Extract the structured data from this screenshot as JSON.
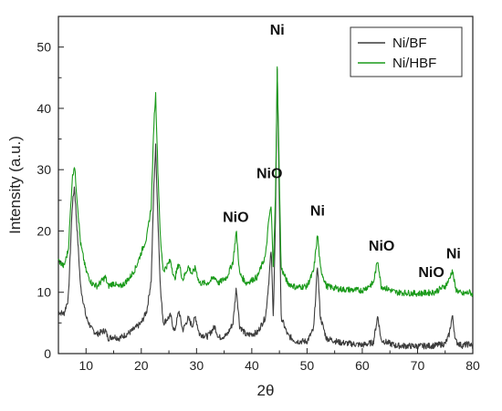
{
  "chart_data": {
    "type": "line",
    "title": "",
    "xlabel": "2θ",
    "ylabel": "Intensity (a.u.)",
    "xlim": [
      5,
      80
    ],
    "ylim": [
      0,
      55
    ],
    "x_ticks": [
      10,
      20,
      30,
      40,
      50,
      60,
      70,
      80
    ],
    "y_ticks": [
      0,
      10,
      20,
      30,
      40,
      50
    ],
    "legend_position": "top-right",
    "grid": false,
    "series": [
      {
        "name": "Ni/BF",
        "color": "#3c3c3c",
        "baseline": 1.2,
        "points": [
          [
            5,
            6.8
          ],
          [
            6,
            6.5
          ],
          [
            6.8,
            9.0
          ],
          [
            7.5,
            24.0
          ],
          [
            7.9,
            27.3
          ],
          [
            8.4,
            20.0
          ],
          [
            9,
            11.0
          ],
          [
            10,
            6.0
          ],
          [
            11,
            4.0
          ],
          [
            12,
            3.2
          ],
          [
            13.5,
            3.8
          ],
          [
            14,
            2.5
          ],
          [
            15,
            2.8
          ],
          [
            16,
            2.5
          ],
          [
            17,
            3.0
          ],
          [
            18,
            3.5
          ],
          [
            19,
            4.2
          ],
          [
            20,
            5.0
          ],
          [
            21,
            7.0
          ],
          [
            21.8,
            12.0
          ],
          [
            22.3,
            28.0
          ],
          [
            22.6,
            33.8
          ],
          [
            23.0,
            22.0
          ],
          [
            23.5,
            10.0
          ],
          [
            24,
            5.0
          ],
          [
            25.3,
            6.2
          ],
          [
            26,
            3.5
          ],
          [
            26.8,
            7.0
          ],
          [
            27.5,
            3.8
          ],
          [
            28.5,
            5.8
          ],
          [
            29.2,
            4.5
          ],
          [
            29.8,
            6.0
          ],
          [
            30.5,
            3.2
          ],
          [
            32,
            2.8
          ],
          [
            33.3,
            4.4
          ],
          [
            34,
            2.6
          ],
          [
            35.5,
            3.0
          ],
          [
            36.6,
            5.0
          ],
          [
            37.2,
            10.8
          ],
          [
            37.8,
            4.5
          ],
          [
            39,
            3.0
          ],
          [
            41,
            3.4
          ],
          [
            42.5,
            6.0
          ],
          [
            43.1,
            12.0
          ],
          [
            43.5,
            17.0
          ],
          [
            43.9,
            6.0
          ],
          [
            44.3,
            22.0
          ],
          [
            44.6,
            46.8
          ],
          [
            44.9,
            30.0
          ],
          [
            45.3,
            6.0
          ],
          [
            46.5,
            3.0
          ],
          [
            48,
            2.0
          ],
          [
            50,
            2.0
          ],
          [
            51.2,
            4.0
          ],
          [
            51.9,
            14.5
          ],
          [
            52.4,
            6.0
          ],
          [
            53.5,
            2.5
          ],
          [
            56,
            1.8
          ],
          [
            60,
            1.4
          ],
          [
            62,
            1.8
          ],
          [
            62.8,
            6.2
          ],
          [
            63.4,
            2.2
          ],
          [
            66,
            1.3
          ],
          [
            70,
            1.2
          ],
          [
            73,
            1.3
          ],
          [
            75,
            1.6
          ],
          [
            75.7,
            3.0
          ],
          [
            76.3,
            6.2
          ],
          [
            76.9,
            2.0
          ],
          [
            78,
            1.3
          ],
          [
            79.5,
            1.6
          ],
          [
            80,
            1.0
          ]
        ]
      },
      {
        "name": "Ni/HBF",
        "color": "#1a9a1a",
        "baseline": 10.0,
        "points": [
          [
            5,
            15.2
          ],
          [
            6,
            14.2
          ],
          [
            6.8,
            17.0
          ],
          [
            7.5,
            28.5
          ],
          [
            7.9,
            30.8
          ],
          [
            8.4,
            25.0
          ],
          [
            9,
            18.0
          ],
          [
            10,
            13.5
          ],
          [
            11,
            11.5
          ],
          [
            12,
            11.0
          ],
          [
            13.5,
            12.5
          ],
          [
            14,
            11.0
          ],
          [
            15,
            11.5
          ],
          [
            16,
            10.8
          ],
          [
            17,
            11.5
          ],
          [
            18,
            12.5
          ],
          [
            19,
            14.0
          ],
          [
            20,
            16.5
          ],
          [
            21,
            19.0
          ],
          [
            21.8,
            24.0
          ],
          [
            22.3,
            38.0
          ],
          [
            22.6,
            42.3
          ],
          [
            23.0,
            30.0
          ],
          [
            23.5,
            18.0
          ],
          [
            24,
            13.5
          ],
          [
            25.3,
            15.2
          ],
          [
            26,
            12.0
          ],
          [
            26.8,
            14.8
          ],
          [
            27.5,
            12.0
          ],
          [
            28.5,
            14.2
          ],
          [
            29.2,
            13.0
          ],
          [
            29.8,
            14.0
          ],
          [
            30.5,
            11.5
          ],
          [
            32,
            11.5
          ],
          [
            33.3,
            12.5
          ],
          [
            34,
            11.5
          ],
          [
            35.5,
            12.5
          ],
          [
            36.6,
            15.0
          ],
          [
            37.2,
            20.0
          ],
          [
            37.8,
            13.0
          ],
          [
            39,
            11.5
          ],
          [
            41,
            12.5
          ],
          [
            42.5,
            16.0
          ],
          [
            43.1,
            22.0
          ],
          [
            43.5,
            24.0
          ],
          [
            43.9,
            14.0
          ],
          [
            44.3,
            26.0
          ],
          [
            44.6,
            46.5
          ],
          [
            44.9,
            33.0
          ],
          [
            45.3,
            14.0
          ],
          [
            46.5,
            11.5
          ],
          [
            48,
            10.8
          ],
          [
            50,
            11.0
          ],
          [
            51.2,
            13.5
          ],
          [
            51.9,
            19.5
          ],
          [
            52.4,
            14.0
          ],
          [
            53.5,
            11.0
          ],
          [
            56,
            10.5
          ],
          [
            60,
            10.3
          ],
          [
            62,
            11.5
          ],
          [
            62.8,
            15.3
          ],
          [
            63.4,
            11.0
          ],
          [
            66,
            10.0
          ],
          [
            70,
            9.8
          ],
          [
            73,
            10.0
          ],
          [
            75,
            11.0
          ],
          [
            75.7,
            12.0
          ],
          [
            76.3,
            13.6
          ],
          [
            76.9,
            10.5
          ],
          [
            78,
            9.7
          ],
          [
            79.5,
            10.0
          ],
          [
            80,
            9.6
          ]
        ]
      }
    ],
    "annotations": [
      {
        "text": "Ni",
        "x": 44.6,
        "y": 52
      },
      {
        "text": "NiO",
        "x": 43.2,
        "y": 28.6
      },
      {
        "text": "NiO",
        "x": 37.1,
        "y": 21.5
      },
      {
        "text": "Ni",
        "x": 51.9,
        "y": 22.5
      },
      {
        "text": "NiO",
        "x": 63.5,
        "y": 16.8
      },
      {
        "text": "Ni",
        "x": 76.5,
        "y": 15.5
      },
      {
        "text": "NiO",
        "x": 72.5,
        "y": 12.5
      }
    ]
  }
}
